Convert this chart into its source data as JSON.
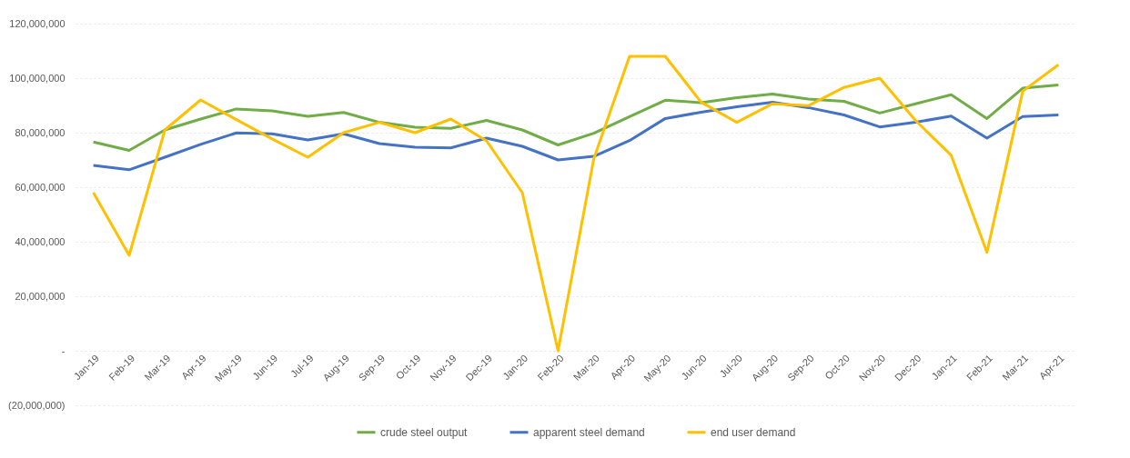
{
  "chart_data": {
    "type": "line",
    "categories": [
      "Jan-19",
      "Feb-19",
      "Mar-19",
      "Apr-19",
      "May-19",
      "Jun-19",
      "Jul-19",
      "Aug-19",
      "Sep-19",
      "Oct-19",
      "Nov-19",
      "Dec-19",
      "Jan-20",
      "Feb-20",
      "Mar-20",
      "Apr-20",
      "May-20",
      "Jun-20",
      "Jul-20",
      "Aug-20",
      "Sep-20",
      "Oct-20",
      "Nov-20",
      "Dec-20",
      "Jan-21",
      "Feb-21",
      "Mar-21",
      "Apr-21"
    ],
    "series": [
      {
        "name": "crude steel output",
        "color": "#70ad47",
        "values": [
          76600000,
          73500000,
          81000000,
          85000000,
          88700000,
          88000000,
          86000000,
          87400000,
          83800000,
          82000000,
          81600000,
          84500000,
          81000000,
          75500000,
          79800000,
          85900000,
          91900000,
          91000000,
          92800000,
          94200000,
          92300000,
          91500000,
          87200000,
          90600000,
          93900000,
          85200000,
          96300000,
          97500000
        ]
      },
      {
        "name": "apparent steel demand",
        "color": "#4472c4",
        "values": [
          68000000,
          66400000,
          71000000,
          75700000,
          79900000,
          79600000,
          77300000,
          79600000,
          76000000,
          74700000,
          74400000,
          78000000,
          75000000,
          70000000,
          71300000,
          77100000,
          85200000,
          87500000,
          89500000,
          91200000,
          89200000,
          86500000,
          82100000,
          83800000,
          86100000,
          78000000,
          85900000,
          86500000
        ]
      },
      {
        "name": "end user demand",
        "color": "#ffc000",
        "values": [
          58000000,
          35000000,
          81000000,
          92000000,
          84800000,
          77700000,
          71000000,
          80000000,
          83800000,
          80000000,
          85000000,
          77000000,
          58000000,
          0,
          70400000,
          108000000,
          108000000,
          91200000,
          83800000,
          90600000,
          89900000,
          96600000,
          100000000,
          84500000,
          71700000,
          36100000,
          95200000,
          104900000
        ]
      }
    ],
    "ylim": [
      -20000000,
      120000000
    ],
    "yticks": [
      {
        "value": -20000000,
        "label": "(20,000,000)"
      },
      {
        "value": 0,
        "label": "-"
      },
      {
        "value": 20000000,
        "label": "20,000,000"
      },
      {
        "value": 40000000,
        "label": "40,000,000"
      },
      {
        "value": 60000000,
        "label": "60,000,000"
      },
      {
        "value": 80000000,
        "label": "80,000,000"
      },
      {
        "value": 100000000,
        "label": "100,000,000"
      },
      {
        "value": 120000000,
        "label": "120,000,000"
      }
    ],
    "grid": "y",
    "legend": "bottom"
  }
}
